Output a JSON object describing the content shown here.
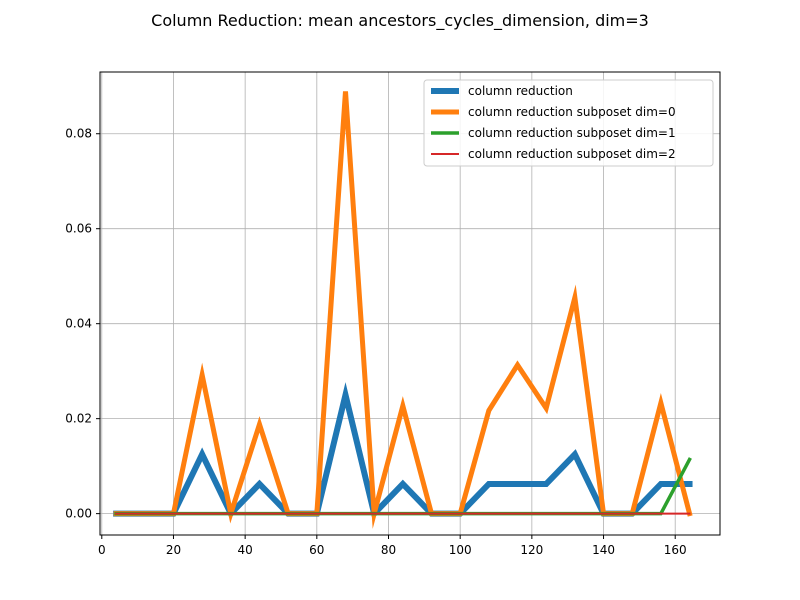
{
  "chart_data": {
    "type": "line",
    "title": "Column Reduction: mean ancestors_cycles_dimension, dim=3",
    "xlabel": "",
    "ylabel": "",
    "xlim": [
      -0.5,
      172.5
    ],
    "ylim": [
      -0.0045,
      0.093
    ],
    "xticks": [
      0,
      20,
      40,
      60,
      80,
      100,
      120,
      140,
      160
    ],
    "yticks": [
      0.0,
      0.02,
      0.04,
      0.06,
      0.08
    ],
    "ytick_labels": [
      "0.00",
      "0.02",
      "0.04",
      "0.06",
      "0.08"
    ],
    "grid": true,
    "legend_position": "top-right",
    "series": [
      {
        "name": "column reduction",
        "color": "#1f77b4",
        "width": 6,
        "x": [
          4,
          12,
          20,
          28,
          36,
          44,
          52,
          60,
          68,
          76,
          84,
          92,
          100,
          108,
          116,
          124,
          132,
          140,
          148,
          156,
          164
        ],
        "y": [
          0,
          0,
          0,
          0.0125,
          0,
          0.00625,
          0,
          0,
          0.025,
          0,
          0.00625,
          0,
          0,
          0.00625,
          0.00625,
          0.00625,
          0.0125,
          0,
          0,
          0.00625,
          0.00625
        ]
      },
      {
        "name": "column reduction subposet dim=0",
        "color": "#ff7f0e",
        "width": 5,
        "x": [
          4,
          12,
          20,
          28,
          36,
          44,
          52,
          60,
          68,
          76,
          84,
          92,
          100,
          108,
          116,
          124,
          132,
          140,
          148,
          156,
          164
        ],
        "y": [
          0,
          0,
          0,
          0.0292,
          0,
          0.0188,
          0,
          0,
          0.0889,
          0,
          0.0227,
          0,
          0,
          0.0217,
          0.0313,
          0.0222,
          0.0455,
          0,
          0,
          0.0233,
          0
        ]
      },
      {
        "name": "column reduction subposet dim=1",
        "color": "#2ca02c",
        "width": 3.5,
        "x": [
          4,
          12,
          20,
          28,
          36,
          44,
          52,
          60,
          68,
          76,
          84,
          92,
          100,
          108,
          116,
          124,
          132,
          140,
          148,
          156,
          164
        ],
        "y": [
          0,
          0,
          0,
          0,
          0,
          0,
          0,
          0,
          0,
          0,
          0,
          0,
          0,
          0,
          0,
          0,
          0,
          0,
          0,
          0,
          0.0114
        ]
      },
      {
        "name": "column reduction subposet dim=2",
        "color": "#d62728",
        "width": 2,
        "x": [
          4,
          12,
          20,
          28,
          36,
          44,
          52,
          60,
          68,
          76,
          84,
          92,
          100,
          108,
          116,
          124,
          132,
          140,
          148,
          156,
          164
        ],
        "y": [
          0,
          0,
          0,
          0,
          0,
          0,
          0,
          0,
          0,
          0,
          0,
          0,
          0,
          0,
          0,
          0,
          0,
          0,
          0,
          0,
          0
        ]
      }
    ]
  }
}
